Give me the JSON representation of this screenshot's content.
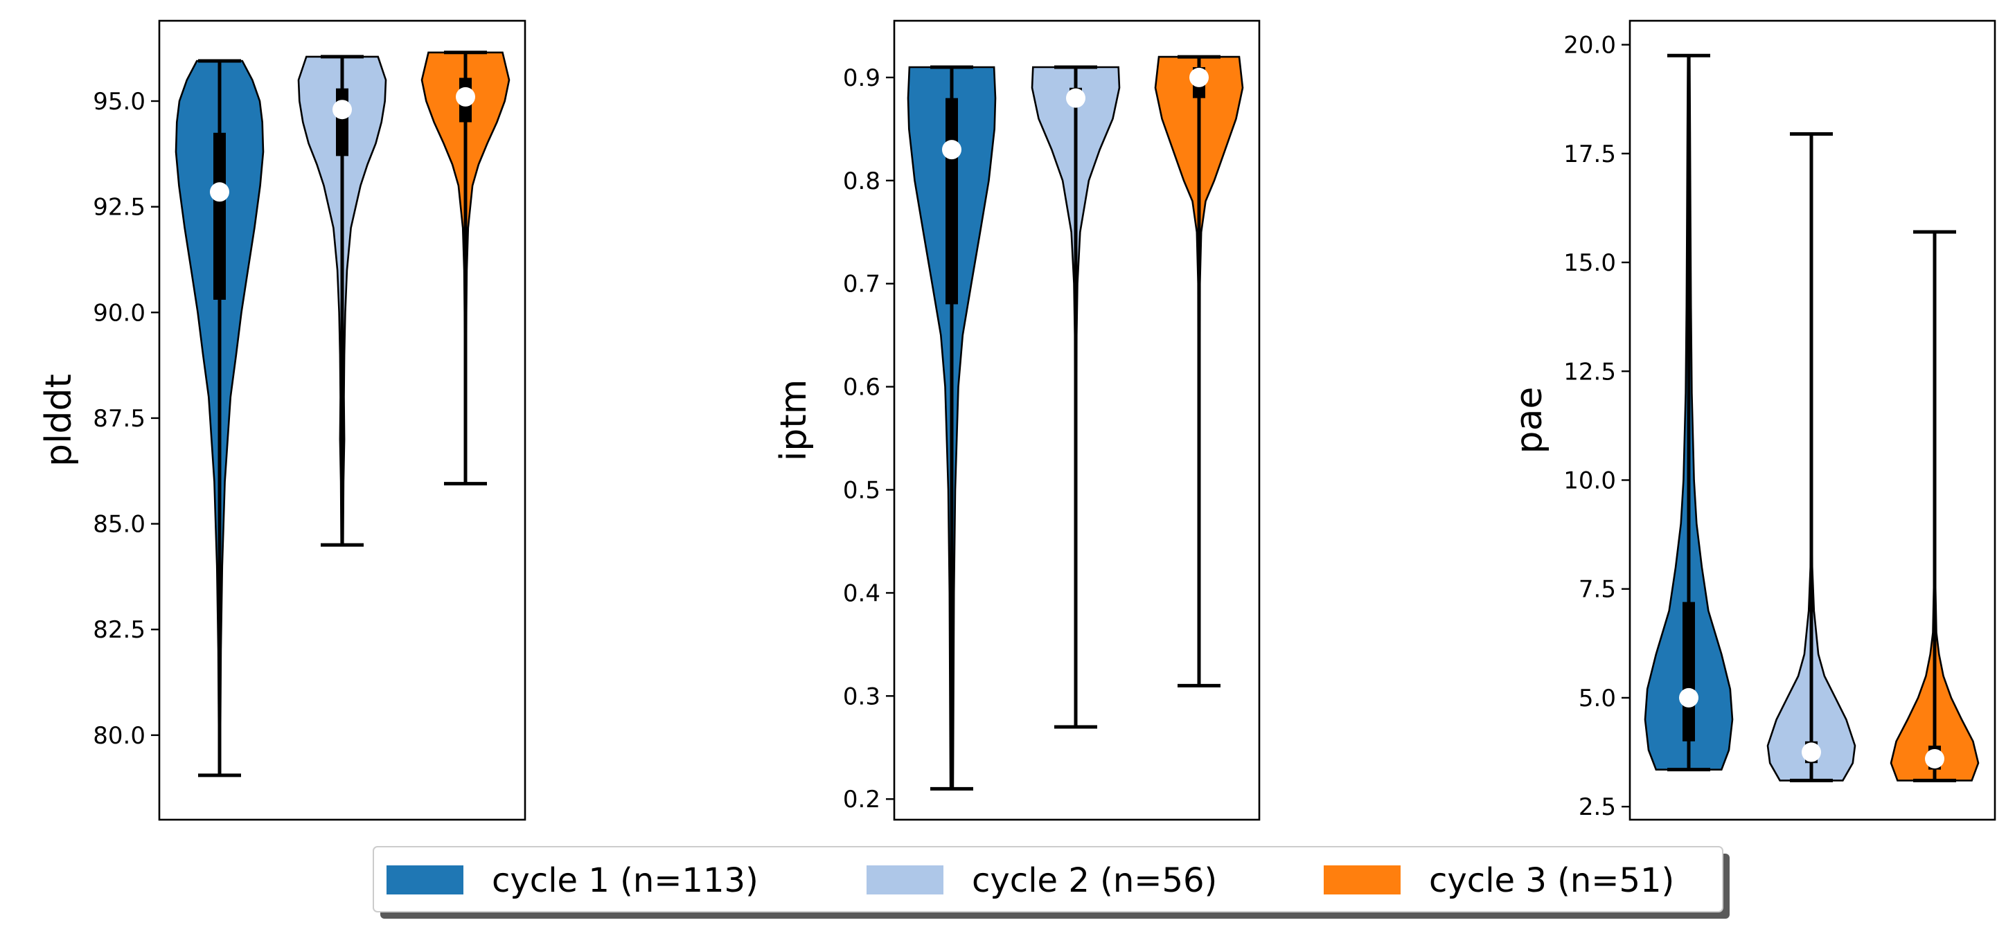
{
  "chart_data": {
    "type": "violin",
    "legend": {
      "placement": "bottom-center",
      "entries": [
        {
          "label": "cycle 1 (n=113)",
          "color": "#1f77b4"
        },
        {
          "label": "cycle 2 (n=56)",
          "color": "#aec7e8"
        },
        {
          "label": "cycle 3 (n=51)",
          "color": "#ff7f0e"
        }
      ]
    },
    "panels": [
      {
        "ylabel": "plddt",
        "ylim": [
          78.0,
          96.9
        ],
        "yticks": [
          80.0,
          82.5,
          85.0,
          87.5,
          90.0,
          92.5,
          95.0
        ],
        "ytick_labels": [
          "80.0",
          "82.5",
          "85.0",
          "87.5",
          "90.0",
          "92.5",
          "95.0"
        ],
        "series": [
          {
            "min": 79.05,
            "max": 95.95,
            "q1": 90.3,
            "median": 92.85,
            "q3": 94.25,
            "density": [
              [
                79.05,
                0.012
              ],
              [
                80,
                0.018
              ],
              [
                82,
                0.03
              ],
              [
                84,
                0.06
              ],
              [
                86,
                0.12
              ],
              [
                88,
                0.25
              ],
              [
                89,
                0.38
              ],
              [
                90,
                0.5
              ],
              [
                91,
                0.65
              ],
              [
                92,
                0.8
              ],
              [
                93,
                0.93
              ],
              [
                93.8,
                1.0
              ],
              [
                94.5,
                0.98
              ],
              [
                95,
                0.92
              ],
              [
                95.5,
                0.75
              ],
              [
                95.95,
                0.52
              ]
            ]
          },
          {
            "min": 84.5,
            "max": 96.05,
            "q1": 93.7,
            "median": 94.8,
            "q3": 95.3,
            "density": [
              [
                84.5,
                0.02
              ],
              [
                86,
                0.03
              ],
              [
                87,
                0.05
              ],
              [
                88,
                0.04
              ],
              [
                89,
                0.05
              ],
              [
                90,
                0.07
              ],
              [
                91,
                0.11
              ],
              [
                92,
                0.2
              ],
              [
                93,
                0.42
              ],
              [
                93.5,
                0.58
              ],
              [
                94,
                0.77
              ],
              [
                94.5,
                0.9
              ],
              [
                95,
                0.98
              ],
              [
                95.5,
                1.0
              ],
              [
                96.05,
                0.82
              ]
            ]
          },
          {
            "min": 85.95,
            "max": 96.15,
            "q1": 94.5,
            "median": 95.1,
            "q3": 95.55,
            "density": [
              [
                85.95,
                0.01
              ],
              [
                88,
                0.015
              ],
              [
                90,
                0.02
              ],
              [
                91,
                0.03
              ],
              [
                92,
                0.06
              ],
              [
                93,
                0.16
              ],
              [
                93.5,
                0.3
              ],
              [
                94,
                0.5
              ],
              [
                94.5,
                0.72
              ],
              [
                95,
                0.9
              ],
              [
                95.5,
                1.0
              ],
              [
                96.15,
                0.85
              ]
            ]
          }
        ]
      },
      {
        "ylabel": "iptm",
        "ylim": [
          0.18,
          0.955
        ],
        "yticks": [
          0.2,
          0.3,
          0.4,
          0.5,
          0.6,
          0.7,
          0.8,
          0.9
        ],
        "ytick_labels": [
          "0.2",
          "0.3",
          "0.4",
          "0.5",
          "0.6",
          "0.7",
          "0.8",
          "0.9"
        ],
        "series": [
          {
            "min": 0.21,
            "max": 0.91,
            "q1": 0.68,
            "median": 0.83,
            "q3": 0.88,
            "density": [
              [
                0.21,
                0.03
              ],
              [
                0.3,
                0.04
              ],
              [
                0.4,
                0.05
              ],
              [
                0.5,
                0.08
              ],
              [
                0.6,
                0.15
              ],
              [
                0.65,
                0.25
              ],
              [
                0.7,
                0.45
              ],
              [
                0.75,
                0.65
              ],
              [
                0.8,
                0.85
              ],
              [
                0.85,
                0.98
              ],
              [
                0.88,
                1.0
              ],
              [
                0.91,
                0.97
              ]
            ]
          },
          {
            "min": 0.27,
            "max": 0.91,
            "q1": 0.873,
            "median": 0.88,
            "q3": 0.89,
            "density": [
              [
                0.27,
                0.01
              ],
              [
                0.5,
                0.015
              ],
              [
                0.65,
                0.02
              ],
              [
                0.7,
                0.04
              ],
              [
                0.75,
                0.1
              ],
              [
                0.8,
                0.3
              ],
              [
                0.83,
                0.55
              ],
              [
                0.86,
                0.85
              ],
              [
                0.89,
                1.0
              ],
              [
                0.91,
                0.98
              ]
            ]
          },
          {
            "min": 0.31,
            "max": 0.92,
            "q1": 0.88,
            "median": 0.9,
            "q3": 0.91,
            "density": [
              [
                0.31,
                0.01
              ],
              [
                0.5,
                0.015
              ],
              [
                0.7,
                0.02
              ],
              [
                0.75,
                0.05
              ],
              [
                0.78,
                0.15
              ],
              [
                0.8,
                0.35
              ],
              [
                0.83,
                0.6
              ],
              [
                0.86,
                0.85
              ],
              [
                0.89,
                1.0
              ],
              [
                0.92,
                0.92
              ]
            ]
          }
        ]
      },
      {
        "ylabel": "pae",
        "ylim": [
          2.2,
          20.55
        ],
        "yticks": [
          2.5,
          5.0,
          7.5,
          10.0,
          12.5,
          15.0,
          17.5,
          20.0
        ],
        "ytick_labels": [
          "2.5",
          "5.0",
          "7.5",
          "10.0",
          "12.5",
          "15.0",
          "17.5",
          "20.0"
        ],
        "series": [
          {
            "min": 3.35,
            "max": 19.75,
            "q1": 4.0,
            "median": 5.0,
            "q3": 7.2,
            "density": [
              [
                3.35,
                0.75
              ],
              [
                3.8,
                0.92
              ],
              [
                4.5,
                1.0
              ],
              [
                5.2,
                0.95
              ],
              [
                6,
                0.75
              ],
              [
                7,
                0.45
              ],
              [
                8,
                0.3
              ],
              [
                9,
                0.18
              ],
              [
                10,
                0.12
              ],
              [
                12,
                0.07
              ],
              [
                14,
                0.05
              ],
              [
                16,
                0.04
              ],
              [
                18,
                0.03
              ],
              [
                19.75,
                0.02
              ]
            ]
          },
          {
            "min": 3.1,
            "max": 17.95,
            "q1": 3.5,
            "median": 3.75,
            "q3": 4.0,
            "density": [
              [
                3.1,
                0.72
              ],
              [
                3.5,
                0.95
              ],
              [
                3.9,
                1.0
              ],
              [
                4.5,
                0.8
              ],
              [
                5,
                0.55
              ],
              [
                5.5,
                0.3
              ],
              [
                6,
                0.16
              ],
              [
                7,
                0.06
              ],
              [
                8,
                0.02
              ],
              [
                10,
                0.01
              ],
              [
                17.95,
                0.005
              ]
            ]
          },
          {
            "min": 3.1,
            "max": 15.7,
            "q1": 3.35,
            "median": 3.6,
            "q3": 3.9,
            "density": [
              [
                3.1,
                0.85
              ],
              [
                3.5,
                1.0
              ],
              [
                4,
                0.88
              ],
              [
                4.5,
                0.62
              ],
              [
                5,
                0.38
              ],
              [
                5.5,
                0.2
              ],
              [
                6,
                0.1
              ],
              [
                6.5,
                0.04
              ],
              [
                8,
                0.01
              ],
              [
                15.7,
                0.005
              ]
            ]
          }
        ]
      }
    ]
  }
}
